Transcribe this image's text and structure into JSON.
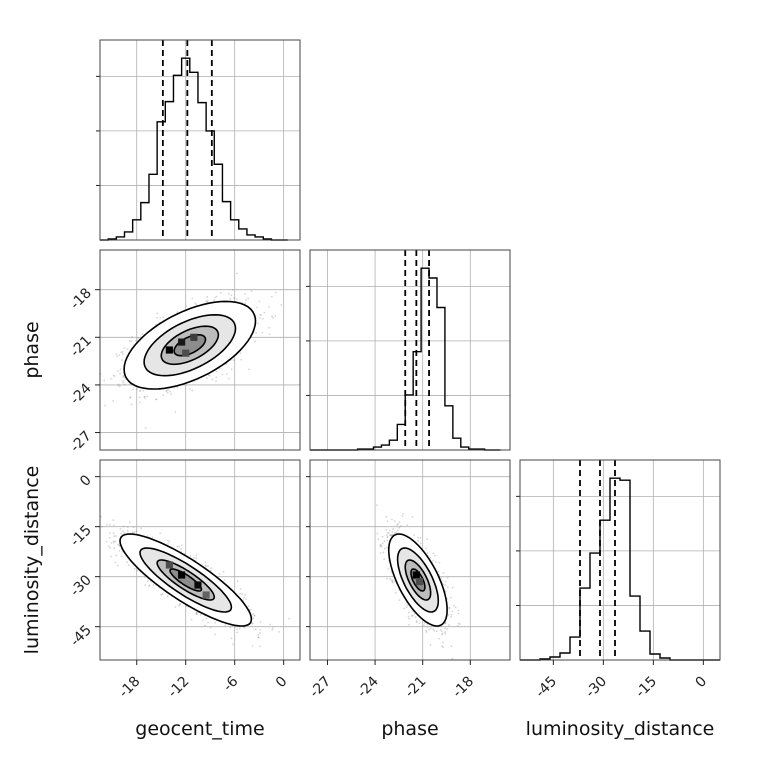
{
  "chart_data": {
    "type": "corner",
    "parameters": [
      {
        "name": "geocent_time",
        "label": "geocent_time",
        "range": [
          -22.5,
          2.0
        ],
        "ticks": [
          -18,
          -12,
          -6,
          0
        ],
        "quantiles": [
          -14.8,
          -11.8,
          -8.8
        ]
      },
      {
        "name": "phase",
        "label": "phase",
        "range": [
          -28.1,
          -15.5
        ],
        "ticks": [
          -27,
          -24,
          -21,
          -18
        ],
        "quantiles": [
          -22.1,
          -21.4,
          -20.6
        ]
      },
      {
        "name": "luminosity_distance",
        "label": "luminosity_distance",
        "range": [
          -55.0,
          5.0
        ],
        "ticks": [
          -45,
          -30,
          -15,
          0
        ],
        "quantiles": [
          -37.0,
          -31.0,
          -26.5
        ]
      }
    ],
    "histograms": [
      {
        "param": "geocent_time",
        "bin_edges": [
          -22.5,
          -21.5,
          -20.5,
          -19.5,
          -18.5,
          -17.5,
          -16.5,
          -15.5,
          -14.5,
          -13.5,
          -12.5,
          -11.5,
          -10.5,
          -9.5,
          -8.5,
          -7.5,
          -6.5,
          -5.5,
          -4.5,
          -3.5,
          -2.5,
          -1.5,
          -0.5,
          0.5
        ],
        "counts": [
          0,
          1,
          3,
          8,
          20,
          37,
          65,
          117,
          137,
          163,
          180,
          166,
          136,
          108,
          75,
          38,
          20,
          11,
          5,
          3,
          1,
          0,
          0
        ]
      },
      {
        "param": "phase",
        "bin_edges": [
          -28.1,
          -27.6,
          -27.1,
          -26.6,
          -26.1,
          -25.6,
          -25.1,
          -24.6,
          -24.1,
          -23.6,
          -23.1,
          -22.6,
          -22.1,
          -21.6,
          -21.1,
          -20.6,
          -20.1,
          -19.6,
          -19.1,
          -18.6,
          -18.1,
          -17.6,
          -17.1,
          -16.6,
          -16.1
        ],
        "counts": [
          0,
          0,
          0,
          0,
          0,
          0,
          1,
          1,
          3,
          5,
          10,
          26,
          56,
          100,
          185,
          175,
          145,
          45,
          12,
          3,
          1,
          1,
          0,
          0
        ]
      },
      {
        "param": "luminosity_distance",
        "bin_edges": [
          -55,
          -52,
          -49,
          -46,
          -43,
          -40,
          -37,
          -34,
          -31,
          -28,
          -25,
          -22,
          -19,
          -16,
          -13,
          -10,
          -7,
          -4,
          -1,
          2,
          5
        ],
        "counts": [
          0,
          0,
          1,
          3,
          7,
          23,
          72,
          107,
          140,
          182,
          180,
          64,
          29,
          6,
          2,
          0,
          0,
          0,
          0,
          0
        ]
      }
    ],
    "pairs": [
      {
        "x": "geocent_time",
        "y": "phase",
        "mean": [
          -11.5,
          -21.5
        ],
        "sigma": [
          3.5,
          1.2
        ],
        "rho": 0.55,
        "dense_bins": [
          [
            -14,
            -21.8,
            1.0
          ],
          [
            -12.5,
            -21.3,
            0.85
          ],
          [
            -11.0,
            -21.0,
            0.6
          ],
          [
            -12.0,
            -22.0,
            0.5
          ]
        ]
      },
      {
        "x": "geocent_time",
        "y": "luminosity_distance",
        "mean": [
          -12.0,
          -31.0
        ],
        "sigma": [
          3.5,
          6.0
        ],
        "rho": -0.85,
        "dense_bins": [
          [
            -12.5,
            -29.5,
            1.0
          ],
          [
            -10.5,
            -32.5,
            0.95
          ],
          [
            -14.0,
            -26.5,
            0.5
          ],
          [
            -9.5,
            -35.5,
            0.35
          ]
        ]
      },
      {
        "x": "phase",
        "y": "luminosity_distance",
        "mean": [
          -21.3,
          -31.0
        ],
        "sigma": [
          0.8,
          6.0
        ],
        "rho": -0.65,
        "dense_bins": [
          [
            -21.4,
            -29.5,
            1.0
          ],
          [
            -21.2,
            -31.5,
            0.5
          ]
        ]
      }
    ],
    "grid": true,
    "xlabel": "",
    "ylabel": ""
  }
}
